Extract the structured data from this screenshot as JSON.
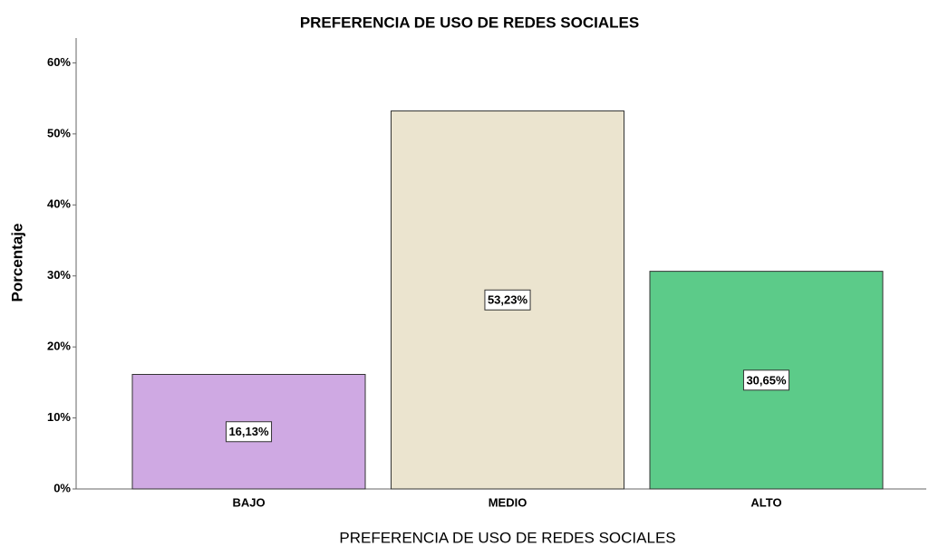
{
  "chart_data": {
    "type": "bar",
    "title": "PREFERENCIA DE USO DE REDES SOCIALES",
    "x_label": "PREFERENCIA DE USO DE REDES SOCIALES",
    "y_label": "Porcentaje",
    "categories": [
      "BAJO",
      "MEDIO",
      "ALTO"
    ],
    "values": [
      16.13,
      53.23,
      30.65
    ],
    "value_labels": [
      "16,13%",
      "53,23%",
      "30,65%"
    ],
    "colors": [
      "#cfa9e3",
      "#ebe4cf",
      "#5ccb89"
    ],
    "ylim": [
      0,
      63.5
    ],
    "yticks": [
      {
        "value": 0,
        "label": "0%"
      },
      {
        "value": 10,
        "label": "10%"
      },
      {
        "value": 20,
        "label": "20%"
      },
      {
        "value": 30,
        "label": "30%"
      },
      {
        "value": 40,
        "label": "40%"
      },
      {
        "value": 50,
        "label": "50%"
      },
      {
        "value": 60,
        "label": "60%"
      }
    ],
    "grid": false
  }
}
